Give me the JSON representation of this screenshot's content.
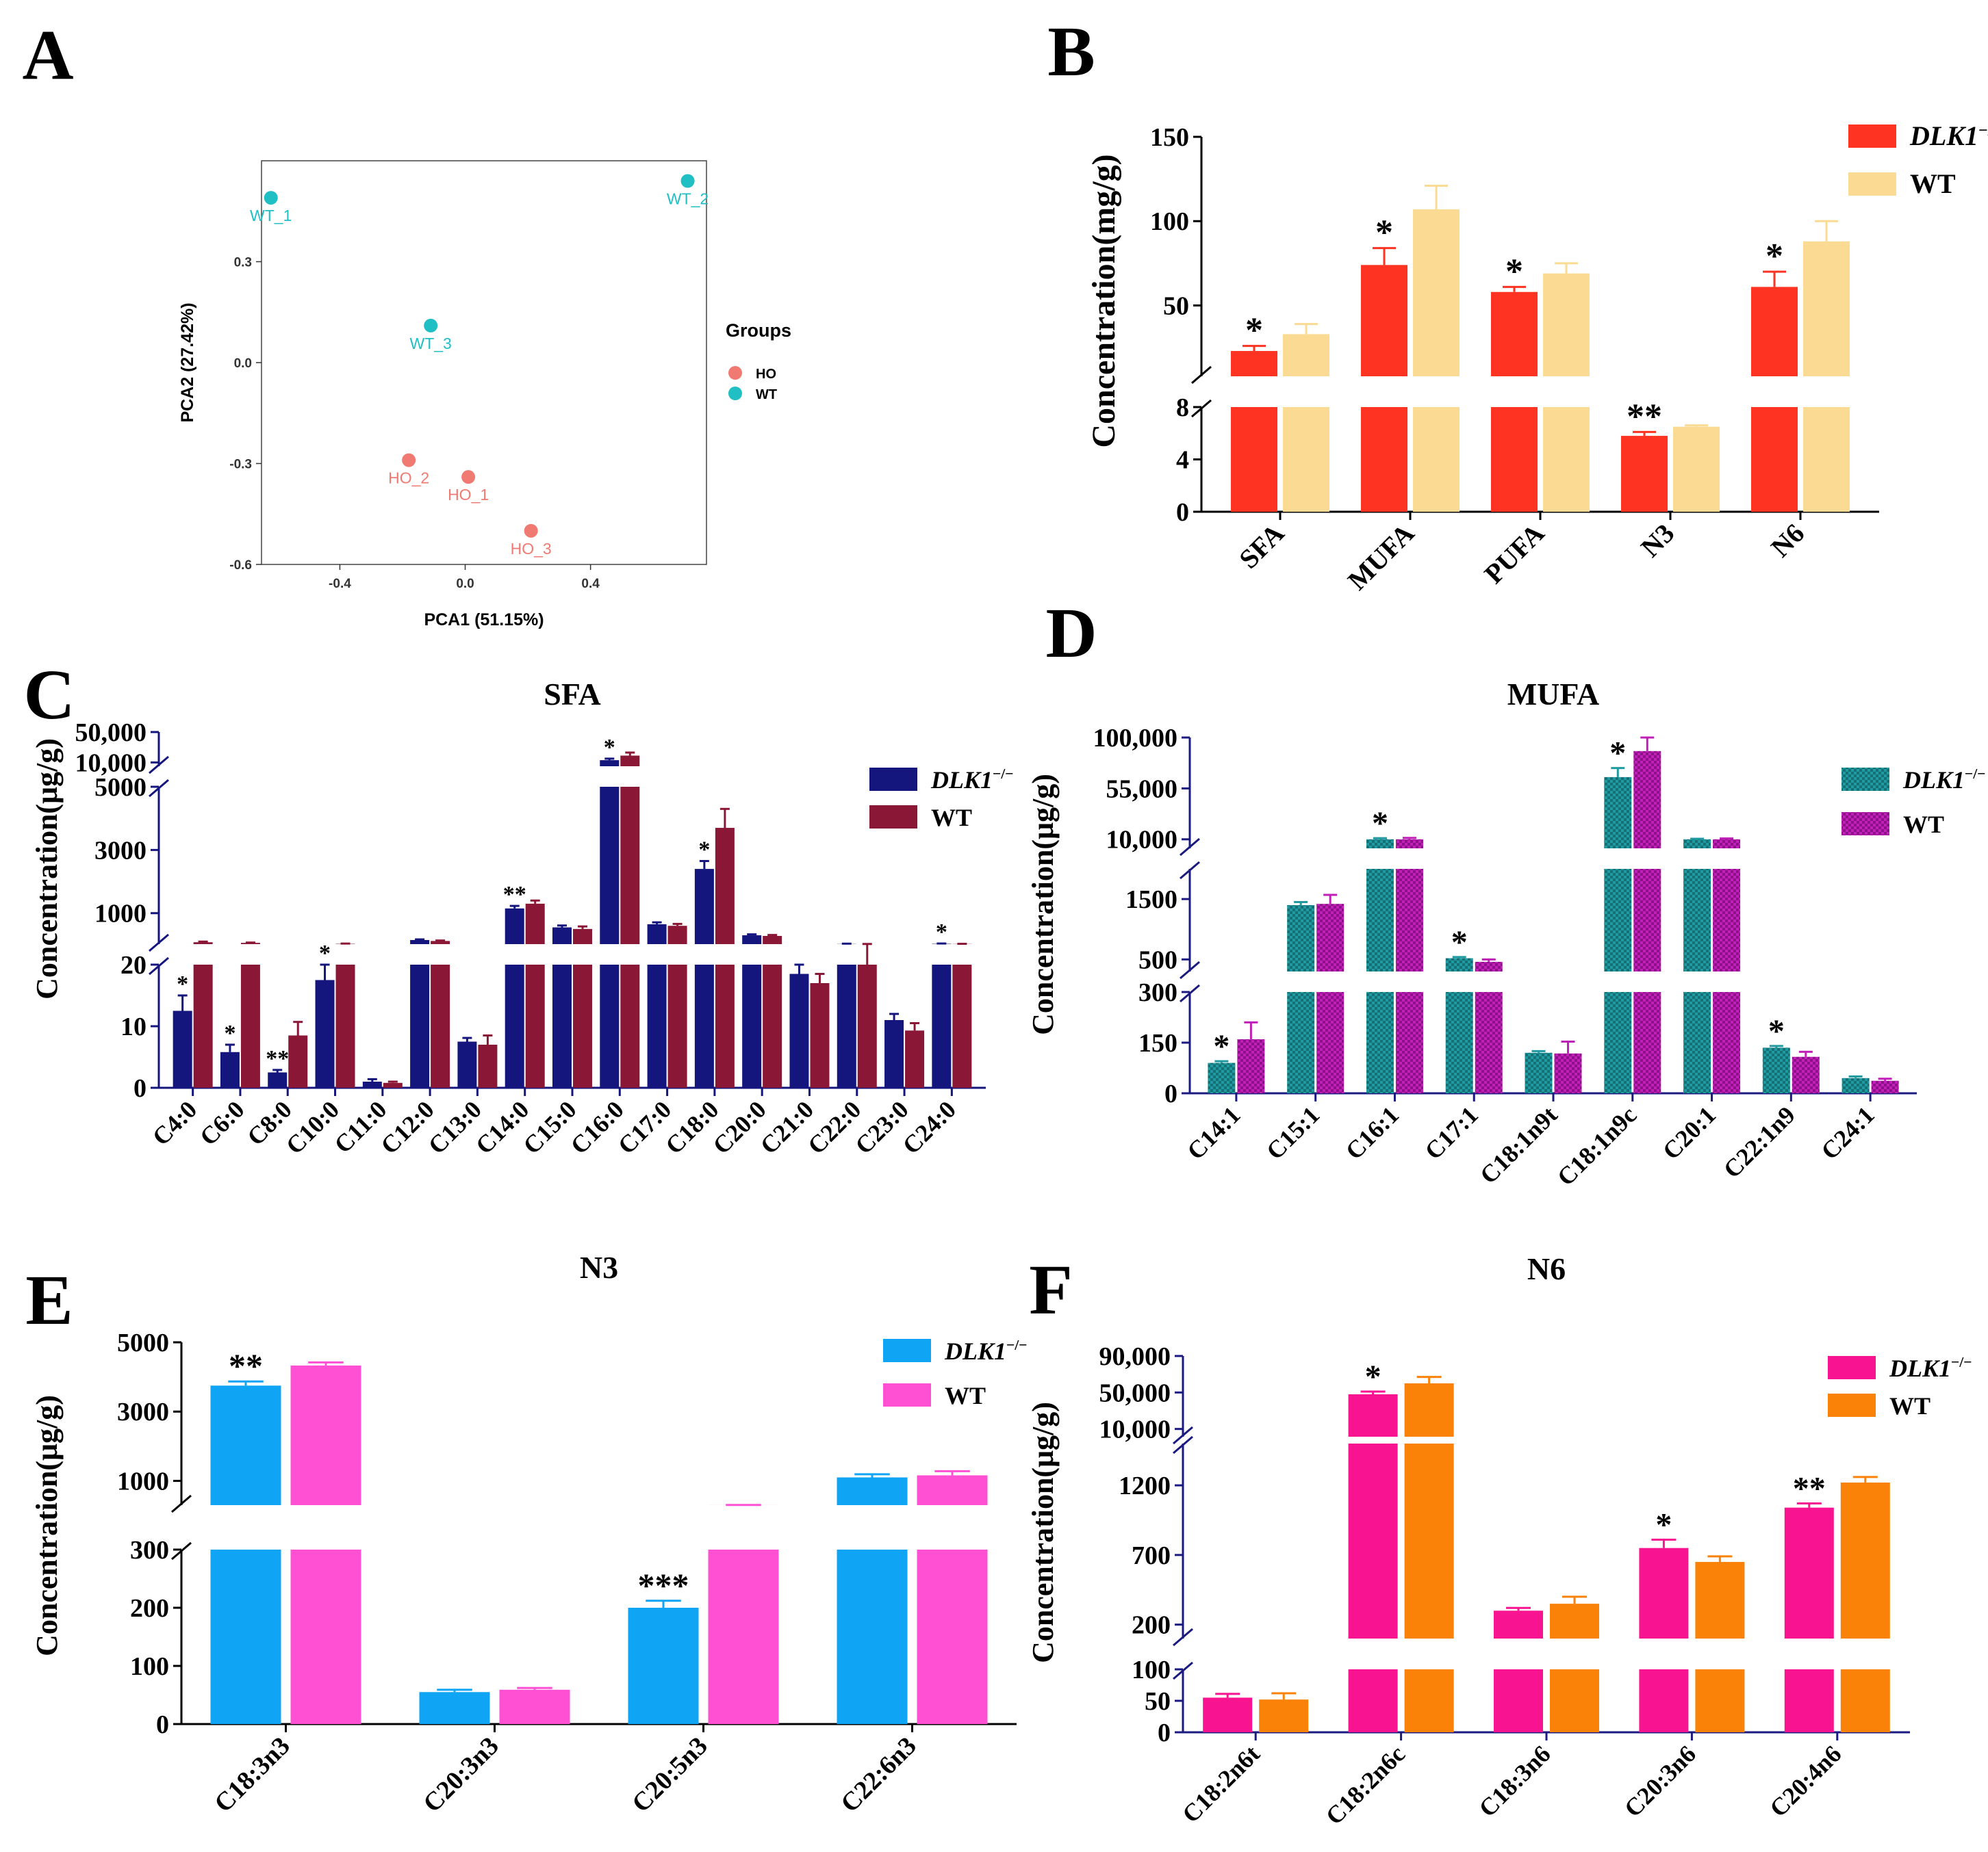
{
  "figure": {
    "panel_letters": [
      "A",
      "B",
      "C",
      "D",
      "E",
      "F"
    ]
  },
  "chart_data": [
    {
      "panel": "A",
      "type": "scatter",
      "title": "",
      "xlabel": "PCA1 (51.15%)",
      "ylabel": "PCA2 (27.42%)",
      "xticks": [
        "-0.4",
        "0.0",
        "0.4"
      ],
      "yticks": [
        "-0.6",
        "-0.3",
        "0.0",
        "0.3"
      ],
      "xlim": [
        -0.65,
        0.77
      ],
      "ylim": [
        -0.6,
        0.6
      ],
      "legend_title": "Groups",
      "legend": [
        {
          "name": "HO",
          "color": "#f07a72"
        },
        {
          "name": "WT",
          "color": "#1fbfc4"
        }
      ],
      "points": [
        {
          "label": "WT_1",
          "group": "WT",
          "x": -0.62,
          "y": 0.49
        },
        {
          "label": "WT_2",
          "group": "WT",
          "x": 0.71,
          "y": 0.54
        },
        {
          "label": "WT_3",
          "group": "WT",
          "x": -0.11,
          "y": 0.11
        },
        {
          "label": "HO_1",
          "group": "HO",
          "x": 0.01,
          "y": -0.34
        },
        {
          "label": "HO_2",
          "group": "HO",
          "x": -0.18,
          "y": -0.29
        },
        {
          "label": "HO_3",
          "group": "HO",
          "x": 0.21,
          "y": -0.5
        }
      ]
    },
    {
      "panel": "B",
      "type": "bar",
      "title": "",
      "ylabel": "Concentration(mg/g)",
      "categories": [
        "SFA",
        "MUFA",
        "PUFA",
        "N3",
        "N6"
      ],
      "series": [
        {
          "name": "DLK1",
          "sup": "−/−",
          "color": "#ff3322",
          "values": [
            23,
            74,
            58,
            5.8,
            61
          ],
          "errors": [
            3,
            10,
            3,
            0.3,
            9
          ],
          "sig": [
            "*",
            "*",
            "*",
            "**",
            "*"
          ]
        },
        {
          "name": "WT",
          "sup": "",
          "color": "#fbdb94",
          "values": [
            33,
            107,
            69,
            6.5,
            88
          ],
          "errors": [
            6,
            14,
            6,
            0.1,
            12
          ],
          "sig": [
            "",
            "",
            "",
            "",
            ""
          ]
        }
      ],
      "segments": [
        {
          "range": [
            0,
            8
          ],
          "ticks": [
            "0",
            "4",
            "8"
          ]
        },
        {
          "range": [
            8,
            150
          ],
          "ticks": [
            "50",
            "100",
            "150"
          ]
        }
      ]
    },
    {
      "panel": "C",
      "type": "bar",
      "title": "SFA",
      "ylabel": "Concentration(μg/g)",
      "categories": [
        "C4:0",
        "C6:0",
        "C8:0",
        "C10:0",
        "C11:0",
        "C12:0",
        "C13:0",
        "C14:0",
        "C15:0",
        "C16:0",
        "C17:0",
        "C18:0",
        "C20:0",
        "C21:0",
        "C22:0",
        "C23:0",
        "C24:0"
      ],
      "series": [
        {
          "name": "DLK1",
          "sup": "−/−",
          "color": "#15157e",
          "values": [
            12.5,
            5.8,
            2.5,
            17.5,
            1,
            150,
            7.5,
            1150,
            550,
            13000,
            650,
            2400,
            300,
            18.5,
            25,
            11,
            30
          ],
          "errors": [
            2.5,
            1.2,
            0.4,
            2.5,
            0.4,
            20,
            0.6,
            80,
            60,
            2000,
            60,
            250,
            30,
            1.5,
            10,
            1,
            10
          ],
          "sig": [
            "*",
            "*",
            "**",
            "*",
            "",
            "",
            "",
            "**",
            "",
            "*",
            "",
            "*",
            "",
            "",
            "",
            "",
            "*"
          ]
        },
        {
          "name": "WT",
          "sup": "",
          "color": "#8b1736",
          "values": [
            80,
            60,
            8.5,
            30,
            0.8,
            120,
            7,
            1300,
            500,
            19000,
            600,
            3700,
            280,
            17,
            20,
            9.3,
            25
          ],
          "errors": [
            20,
            10,
            2.2,
            8,
            0.2,
            15,
            1.5,
            100,
            80,
            4000,
            60,
            600,
            30,
            1.5,
            5,
            1.2,
            5
          ],
          "sig": [
            "",
            "",
            "",
            "",
            "",
            "",
            "",
            "",
            "",
            "",
            "",
            "",
            "",
            "",
            "",
            "",
            ""
          ]
        }
      ],
      "segments": [
        {
          "range": [
            0,
            20
          ],
          "ticks": [
            "0",
            "10",
            "20"
          ]
        },
        {
          "range": [
            20,
            5000
          ],
          "ticks": [
            "1000",
            "3000",
            "5000"
          ]
        },
        {
          "range": [
            5000,
            50000
          ],
          "ticks": [
            "10,000",
            "50,000"
          ]
        }
      ]
    },
    {
      "panel": "D",
      "type": "bar",
      "title": "MUFA",
      "ylabel": "Concentration(μg/g)",
      "categories": [
        "C14:1",
        "C15:1",
        "C16:1",
        "C17:1",
        "C18:1n9t",
        "C18:1n9c",
        "C20:1",
        "C22:1n9",
        "C24:1"
      ],
      "series": [
        {
          "name": "DLK1",
          "sup": "−/−",
          "color": "#1f9aa0",
          "values": [
            90,
            1400,
            10000,
            520,
            120,
            65000,
            10000,
            135,
            45
          ],
          "errors": [
            5,
            50,
            1000,
            20,
            5,
            8000,
            500,
            5,
            5
          ],
          "sig": [
            "*",
            "",
            "*",
            "*",
            "",
            "*",
            "",
            "*",
            ""
          ]
        },
        {
          "name": "WT",
          "sup": "",
          "color": "#c01fb8",
          "values": [
            160,
            1420,
            10000,
            460,
            118,
            88000,
            10000,
            108,
            37
          ],
          "errors": [
            50,
            150,
            1200,
            40,
            35,
            12000,
            800,
            15,
            6
          ],
          "sig": [
            "",
            "",
            "",
            "",
            "",
            "",
            "",
            "",
            ""
          ]
        }
      ],
      "segments": [
        {
          "range": [
            0,
            300
          ],
          "ticks": [
            "0",
            "150",
            "300"
          ]
        },
        {
          "range": [
            300,
            2000
          ],
          "ticks": [
            "500",
            "1500"
          ]
        },
        {
          "range": [
            2000,
            100000
          ],
          "ticks": [
            "10,000",
            "55,000",
            "100,000"
          ]
        }
      ]
    },
    {
      "panel": "E",
      "type": "bar",
      "title": "N3",
      "ylabel": "Concentration(μg/g)",
      "categories": [
        "C18:3n3",
        "C20:3n3",
        "C20:5n3",
        "C22:6n3"
      ],
      "series": [
        {
          "name": "DLK1",
          "sup": "−/−",
          "color": "#10a4f4",
          "values": [
            3750,
            55,
            200,
            1100
          ],
          "errors": [
            120,
            4,
            12,
            90
          ],
          "sig": [
            "**",
            "",
            "***",
            ""
          ]
        },
        {
          "name": "WT",
          "sup": "",
          "color": "#ff50d4",
          "values": [
            4330,
            59,
            301,
            1160
          ],
          "errors": [
            90,
            3,
            3,
            120
          ],
          "sig": [
            "",
            "",
            "",
            ""
          ]
        }
      ],
      "segments": [
        {
          "range": [
            0,
            300
          ],
          "ticks": [
            "0",
            "100",
            "200",
            "300"
          ]
        },
        {
          "range": [
            300,
            5000
          ],
          "ticks": [
            "1000",
            "3000",
            "5000"
          ]
        }
      ]
    },
    {
      "panel": "F",
      "type": "bar",
      "title": "N6",
      "ylabel": "Concentration(μg/g)",
      "categories": [
        "C18:2n6t",
        "C18:2n6c",
        "C18:3n6",
        "C20:3n6",
        "C20:4n6"
      ],
      "series": [
        {
          "name": "DLK1",
          "sup": "−/−",
          "color": "#f81491",
          "values": [
            55,
            48000,
            300,
            750,
            1040
          ],
          "errors": [
            6,
            3000,
            20,
            60,
            30
          ],
          "sig": [
            "",
            "*",
            "",
            "*",
            "**"
          ]
        },
        {
          "name": "WT",
          "sup": "",
          "color": "#fa8208",
          "values": [
            52,
            60000,
            350,
            650,
            1220
          ],
          "errors": [
            10,
            7000,
            50,
            40,
            40
          ],
          "sig": [
            "",
            "",
            "",
            "",
            ""
          ]
        }
      ],
      "segments": [
        {
          "range": [
            0,
            100
          ],
          "ticks": [
            "0",
            "50",
            "100"
          ]
        },
        {
          "range": [
            100,
            1500
          ],
          "ticks": [
            "200",
            "700",
            "1200"
          ]
        },
        {
          "range": [
            1500,
            90000
          ],
          "ticks": [
            "10,000",
            "50,000",
            "90,000"
          ]
        }
      ]
    }
  ]
}
